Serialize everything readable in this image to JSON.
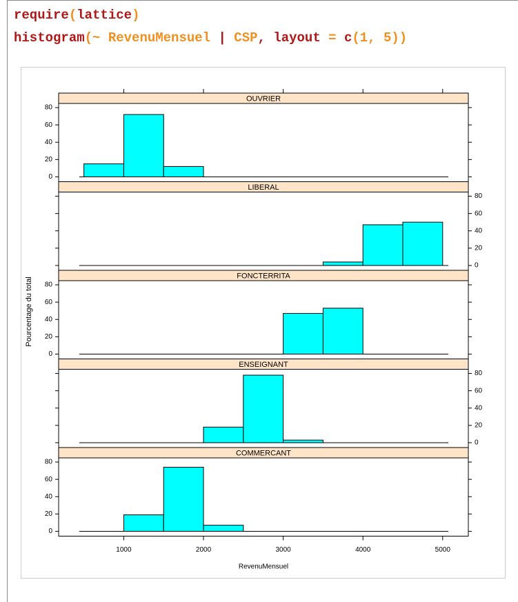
{
  "code": [
    [
      {
        "text": "require",
        "color": "#b01818"
      },
      {
        "text": "(",
        "color": "#f09020"
      },
      {
        "text": "lattice",
        "color": "#b01818"
      },
      {
        "text": ")",
        "color": "#f09020"
      }
    ],
    [
      {
        "text": "histogram",
        "color": "#b01818"
      },
      {
        "text": "(~ ",
        "color": "#f09020"
      },
      {
        "text": "RevenuMensuel",
        "color": "#f09020"
      },
      {
        "text": " | ",
        "color": "#b01818"
      },
      {
        "text": "CSP",
        "color": "#f09020"
      },
      {
        "text": ", ",
        "color": "#b01818"
      },
      {
        "text": "layout",
        "color": "#b01818"
      },
      {
        "text": " = ",
        "color": "#f09020"
      },
      {
        "text": "c",
        "color": "#b01818"
      },
      {
        "text": "(1, 5))",
        "color": "#f09020"
      }
    ]
  ],
  "x_label": "RevenuMensuel",
  "y_label": "Pourcentage du total",
  "chart_data": [
    {
      "type": "histogram",
      "title": "OUVRIER",
      "bins": [
        500,
        1000,
        1500,
        2000,
        2500,
        3000,
        3500,
        4000,
        4500,
        5000
      ],
      "values": [
        15,
        72,
        12,
        0,
        0,
        0,
        0,
        0,
        0
      ],
      "color": "#00ffff",
      "xlim": [
        183,
        5322
      ],
      "ylim": [
        -5.6,
        84.8
      ],
      "xticks": [
        1000,
        2000,
        3000,
        4000,
        5000
      ],
      "yticks": [
        0,
        20,
        40,
        60,
        80
      ],
      "y_axis_side": "left"
    },
    {
      "type": "histogram",
      "title": "LIBERAL",
      "bins": [
        500,
        1000,
        1500,
        2000,
        2500,
        3000,
        3500,
        4000,
        4500,
        5000
      ],
      "values": [
        0,
        0,
        0,
        0,
        0,
        0,
        4,
        47,
        50
      ],
      "color": "#00ffff",
      "xlim": [
        183,
        5322
      ],
      "ylim": [
        -5.6,
        84.8
      ],
      "xticks": [
        1000,
        2000,
        3000,
        4000,
        5000
      ],
      "yticks": [
        0,
        20,
        40,
        60,
        80
      ],
      "y_axis_side": "right"
    },
    {
      "type": "histogram",
      "title": "FONCTERRITA",
      "bins": [
        500,
        1000,
        1500,
        2000,
        2500,
        3000,
        3500,
        4000,
        4500,
        5000
      ],
      "values": [
        0,
        0,
        0,
        0,
        0,
        47,
        53,
        0,
        0
      ],
      "color": "#00ffff",
      "xlim": [
        183,
        5322
      ],
      "ylim": [
        -5.6,
        84.8
      ],
      "xticks": [
        1000,
        2000,
        3000,
        4000,
        5000
      ],
      "yticks": [
        0,
        20,
        40,
        60,
        80
      ],
      "y_axis_side": "left"
    },
    {
      "type": "histogram",
      "title": "ENSEIGNANT",
      "bins": [
        500,
        1000,
        1500,
        2000,
        2500,
        3000,
        3500,
        4000,
        4500,
        5000
      ],
      "values": [
        0,
        0,
        0,
        18,
        78,
        3,
        0,
        0,
        0
      ],
      "color": "#00ffff",
      "xlim": [
        183,
        5322
      ],
      "ylim": [
        -5.6,
        84.8
      ],
      "xticks": [
        1000,
        2000,
        3000,
        4000,
        5000
      ],
      "yticks": [
        0,
        20,
        40,
        60,
        80
      ],
      "y_axis_side": "right"
    },
    {
      "type": "histogram",
      "title": "COMMERCANT",
      "bins": [
        500,
        1000,
        1500,
        2000,
        2500,
        3000,
        3500,
        4000,
        4500,
        5000
      ],
      "values": [
        0,
        19,
        74,
        7,
        0,
        0,
        0,
        0,
        0
      ],
      "color": "#00ffff",
      "xlim": [
        183,
        5322
      ],
      "ylim": [
        -5.6,
        84.8
      ],
      "xticks": [
        1000,
        2000,
        3000,
        4000,
        5000
      ],
      "yticks": [
        0,
        20,
        40,
        60,
        80
      ],
      "y_axis_side": "left"
    }
  ]
}
